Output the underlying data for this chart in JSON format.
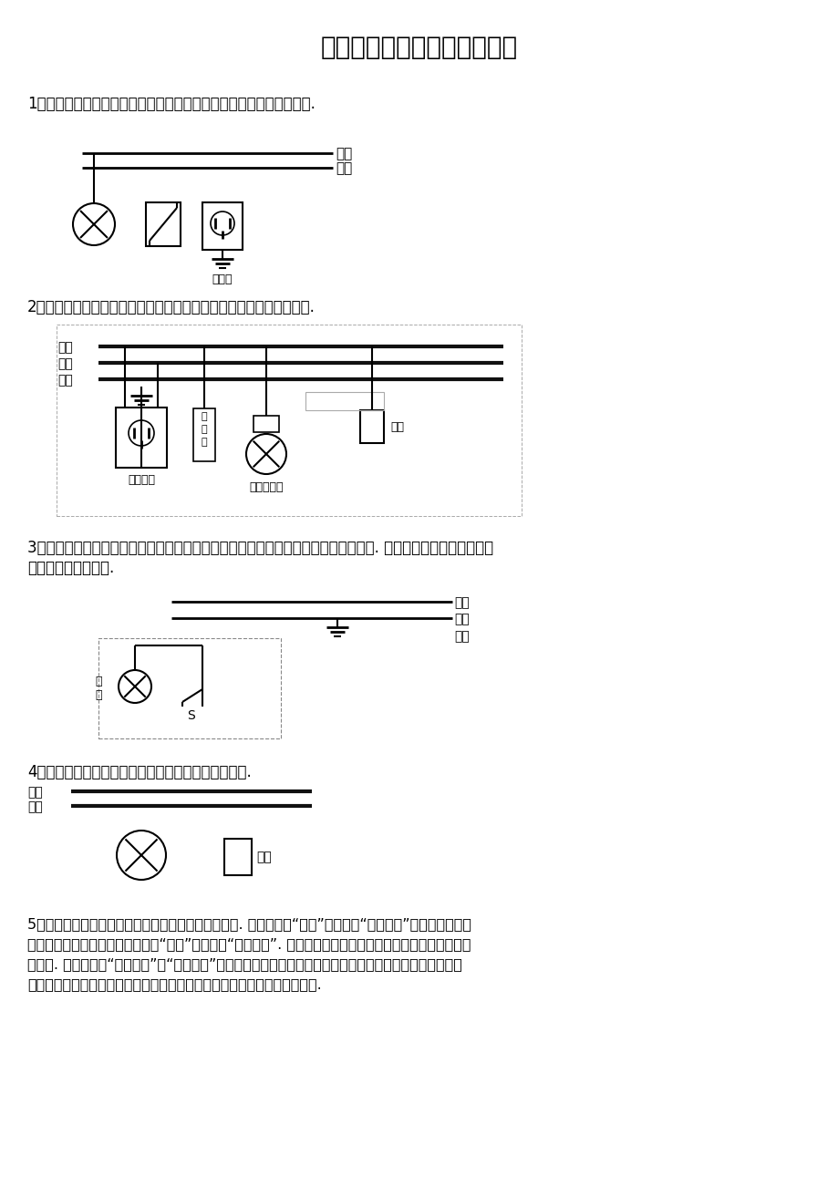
{
  "title": "初中家庭电路专题（作图题）",
  "bg": "#ffffff",
  "fg": "#000000",
  "q1": "1、请在图中用笔画线代替导线将电灯、开关和插座正确接入家庭电路.",
  "q2": "2、如图，请将三孔插座、保险丝、灯泡、开关正确连入到家庭电路中.",
  "q3a": "3、图中虚线框内是一台灯旋鈕开关的内部电路简图，通过它可控制台灯的通断和亮度. 请将电路图连接完整，使其",
  "q3b": "符合安全用电的原则.",
  "q4": "4、请在如图中把负口灯泡和开关正确接入家庭电路中.",
  "q5a": "5、居民楼的楼道里，夜间楼道灯一直亮着会造成浪费. 科研人员用“光敏”材料制成“光控开关”，它能在天黑时",
  "q5b": "自动闭合，天亮时自动断开；利用“声敏”材料制成“声控开关”. 它能在有人走动发出声音时闭合，无人走动时自",
  "q5c": "动断开. 请将如图的“光控开关”、“声控开关”、灯泡用笔画线代替导线正确连入电路，设计出只在夜间且有声",
  "q5d": "音时灯才亮的楼道灯自动控制电路，同时安装一个不受开关控制的三孔插座."
}
